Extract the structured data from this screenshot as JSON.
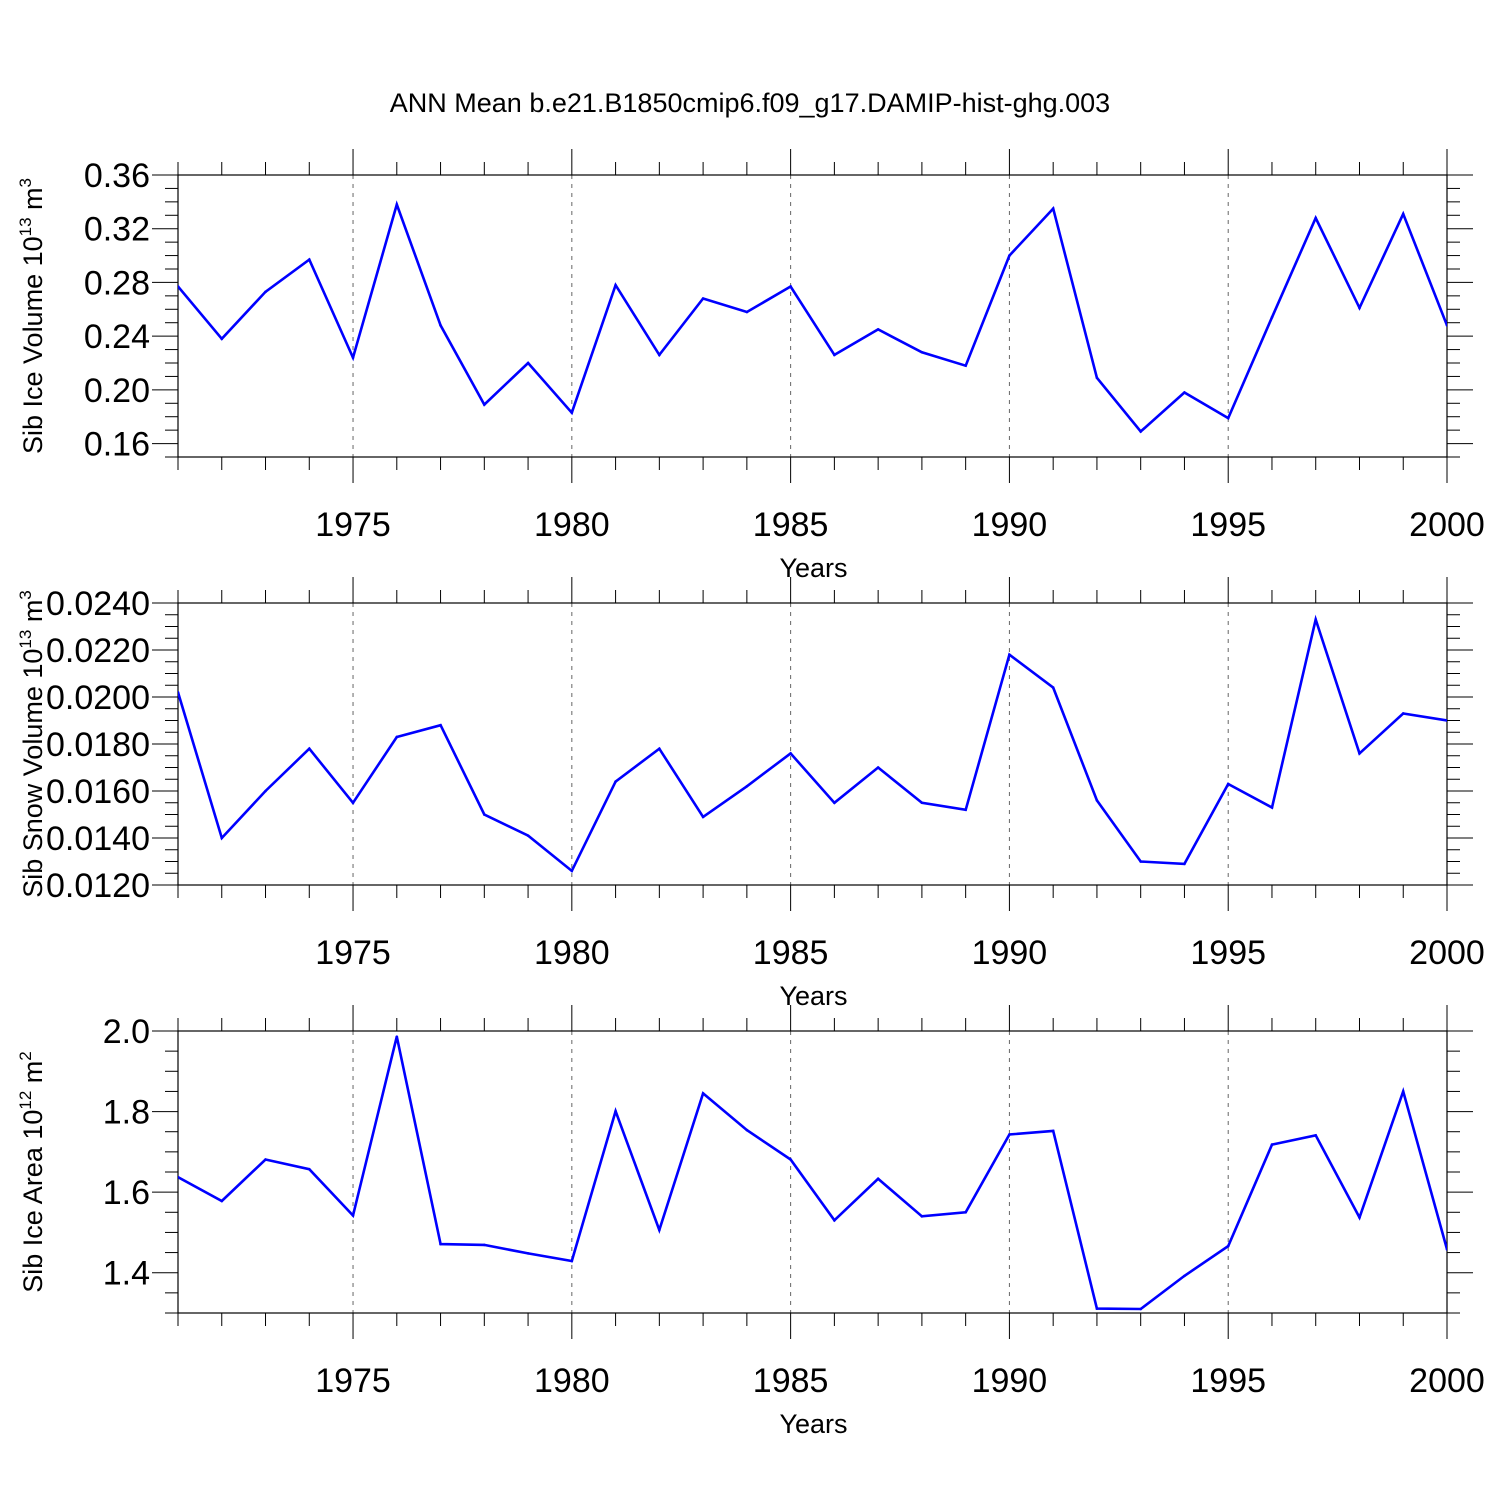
{
  "figure_title": "ANN Mean b.e21.B1850cmip6.f09_g17.DAMIP-hist-ghg.003",
  "line_color": "#0000ff",
  "chart_data": [
    {
      "type": "line",
      "ylabel": "Sib Ice Volume 10",
      "ylabel_sup": "13",
      "ylabel_unit": " m",
      "ylabel_unit_sup": "3",
      "xlabel": "Years",
      "xlim": [
        1971,
        2000
      ],
      "ylim": [
        0.15,
        0.36
      ],
      "xticks": [
        1975,
        1980,
        1985,
        1990,
        1995,
        2000
      ],
      "yticks": [
        0.16,
        0.2,
        0.24,
        0.28,
        0.32,
        0.36
      ],
      "ytick_labels": [
        "0.16",
        "0.20",
        "0.24",
        "0.28",
        "0.32",
        "0.36"
      ],
      "x": [
        1971,
        1972,
        1973,
        1974,
        1975,
        1976,
        1977,
        1978,
        1979,
        1980,
        1981,
        1982,
        1983,
        1984,
        1985,
        1986,
        1987,
        1988,
        1989,
        1990,
        1991,
        1992,
        1993,
        1994,
        1995,
        1996,
        1997,
        1998,
        1999,
        2000
      ],
      "values": [
        0.277,
        0.238,
        0.273,
        0.297,
        0.224,
        0.338,
        0.248,
        0.189,
        0.22,
        0.183,
        0.278,
        0.226,
        0.268,
        0.258,
        0.277,
        0.226,
        0.245,
        0.228,
        0.218,
        0.3,
        0.335,
        0.209,
        0.169,
        0.198,
        0.179,
        0.254,
        0.328,
        0.261,
        0.331,
        0.248
      ]
    },
    {
      "type": "line",
      "ylabel": "Sib Snow Volume 10",
      "ylabel_sup": "13",
      "ylabel_unit": " m",
      "ylabel_unit_sup": "3",
      "xlabel": "Years",
      "xlim": [
        1971,
        2000
      ],
      "ylim": [
        0.012,
        0.024
      ],
      "xticks": [
        1975,
        1980,
        1985,
        1990,
        1995,
        2000
      ],
      "yticks": [
        0.012,
        0.014,
        0.016,
        0.018,
        0.02,
        0.022,
        0.024
      ],
      "ytick_labels": [
        "0.0120",
        "0.0140",
        "0.0160",
        "0.0180",
        "0.0200",
        "0.0220",
        "0.0240"
      ],
      "x": [
        1971,
        1972,
        1973,
        1974,
        1975,
        1976,
        1977,
        1978,
        1979,
        1980,
        1981,
        1982,
        1983,
        1984,
        1985,
        1986,
        1987,
        1988,
        1989,
        1990,
        1991,
        1992,
        1993,
        1994,
        1995,
        1996,
        1997,
        1998,
        1999,
        2000
      ],
      "values": [
        0.0202,
        0.014,
        0.016,
        0.0178,
        0.0155,
        0.0183,
        0.0188,
        0.015,
        0.0141,
        0.0126,
        0.0164,
        0.0178,
        0.0149,
        0.0162,
        0.0176,
        0.0155,
        0.017,
        0.0155,
        0.0152,
        0.0218,
        0.0204,
        0.0156,
        0.013,
        0.0129,
        0.0163,
        0.0153,
        0.0233,
        0.0176,
        0.0193,
        0.019
      ]
    },
    {
      "type": "line",
      "ylabel": "Sib Ice Area 10",
      "ylabel_sup": "12",
      "ylabel_unit": " m",
      "ylabel_unit_sup": "2",
      "xlabel": "Years",
      "xlim": [
        1971,
        2000
      ],
      "ylim": [
        1.3,
        2.0
      ],
      "xticks": [
        1975,
        1980,
        1985,
        1990,
        1995,
        2000
      ],
      "yticks": [
        1.4,
        1.6,
        1.8,
        2.0
      ],
      "ytick_labels": [
        "1.4",
        "1.6",
        "1.8",
        "2.0"
      ],
      "x": [
        1971,
        1972,
        1973,
        1974,
        1975,
        1976,
        1977,
        1978,
        1979,
        1980,
        1981,
        1982,
        1983,
        1984,
        1985,
        1986,
        1987,
        1988,
        1989,
        1990,
        1991,
        1992,
        1993,
        1994,
        1995,
        1996,
        1997,
        1998,
        1999,
        2000
      ],
      "values": [
        1.637,
        1.578,
        1.681,
        1.657,
        1.542,
        1.986,
        1.471,
        1.469,
        1.448,
        1.429,
        1.801,
        1.506,
        1.845,
        1.754,
        1.681,
        1.53,
        1.633,
        1.54,
        1.55,
        1.743,
        1.752,
        1.311,
        1.31,
        1.392,
        1.466,
        1.718,
        1.741,
        1.537,
        1.85,
        1.458
      ]
    }
  ]
}
